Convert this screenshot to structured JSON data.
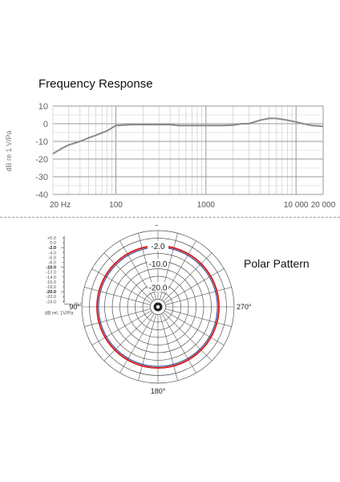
{
  "chart_data": [
    {
      "type": "line",
      "title": "Frequency Response",
      "xlabel": "",
      "ylabel": "dB re 1 V/Pa",
      "x_scale": "log",
      "xlim": [
        20,
        20000
      ],
      "ylim": [
        -40,
        10
      ],
      "x_tick_labels": [
        "20 Hz",
        "100",
        "1000",
        "10 000",
        "20 000"
      ],
      "x_tick_values": [
        20,
        100,
        1000,
        10000,
        20000
      ],
      "y_ticks": [
        10,
        0,
        -10,
        -20,
        -30,
        -40
      ],
      "grid": true,
      "series": [
        {
          "x": [
            20,
            25,
            30,
            40,
            50,
            60,
            80,
            100,
            150,
            200,
            300,
            400,
            500,
            700,
            1000,
            1500,
            2000,
            2500,
            3000,
            4000,
            5000,
            6000,
            7000,
            8000,
            10000,
            12000,
            15000,
            20000
          ],
          "values": [
            -17,
            -14,
            -12,
            -10,
            -8,
            -6.5,
            -4,
            -1,
            -0.5,
            -0.5,
            -0.5,
            -0.5,
            -1,
            -1,
            -1,
            -1,
            -0.8,
            0,
            0,
            2,
            3,
            3,
            2.5,
            2,
            1,
            0,
            -1,
            -1.5
          ]
        }
      ]
    },
    {
      "type": "polar",
      "title": "Polar Pattern",
      "angle_labels": [
        "0°",
        "90°",
        "180°",
        "270°"
      ],
      "ring_labels": [
        "-2.0",
        "-10.0",
        "-20.0"
      ],
      "scale_labels": [
        "+5.0",
        "0.0",
        "-2.0",
        "-4.0",
        "-6.0",
        "-8.0",
        "-10.0",
        "-12.0",
        "-14.0",
        "-16.0",
        "-18.0",
        "-20.0",
        "-22.0",
        "-24.0",
        "-25.0"
      ],
      "scale_unit": "dB rel. 1V/Pa",
      "series": [
        {
          "name": "",
          "color": "#d42020",
          "level_db": -2.0
        }
      ]
    }
  ]
}
